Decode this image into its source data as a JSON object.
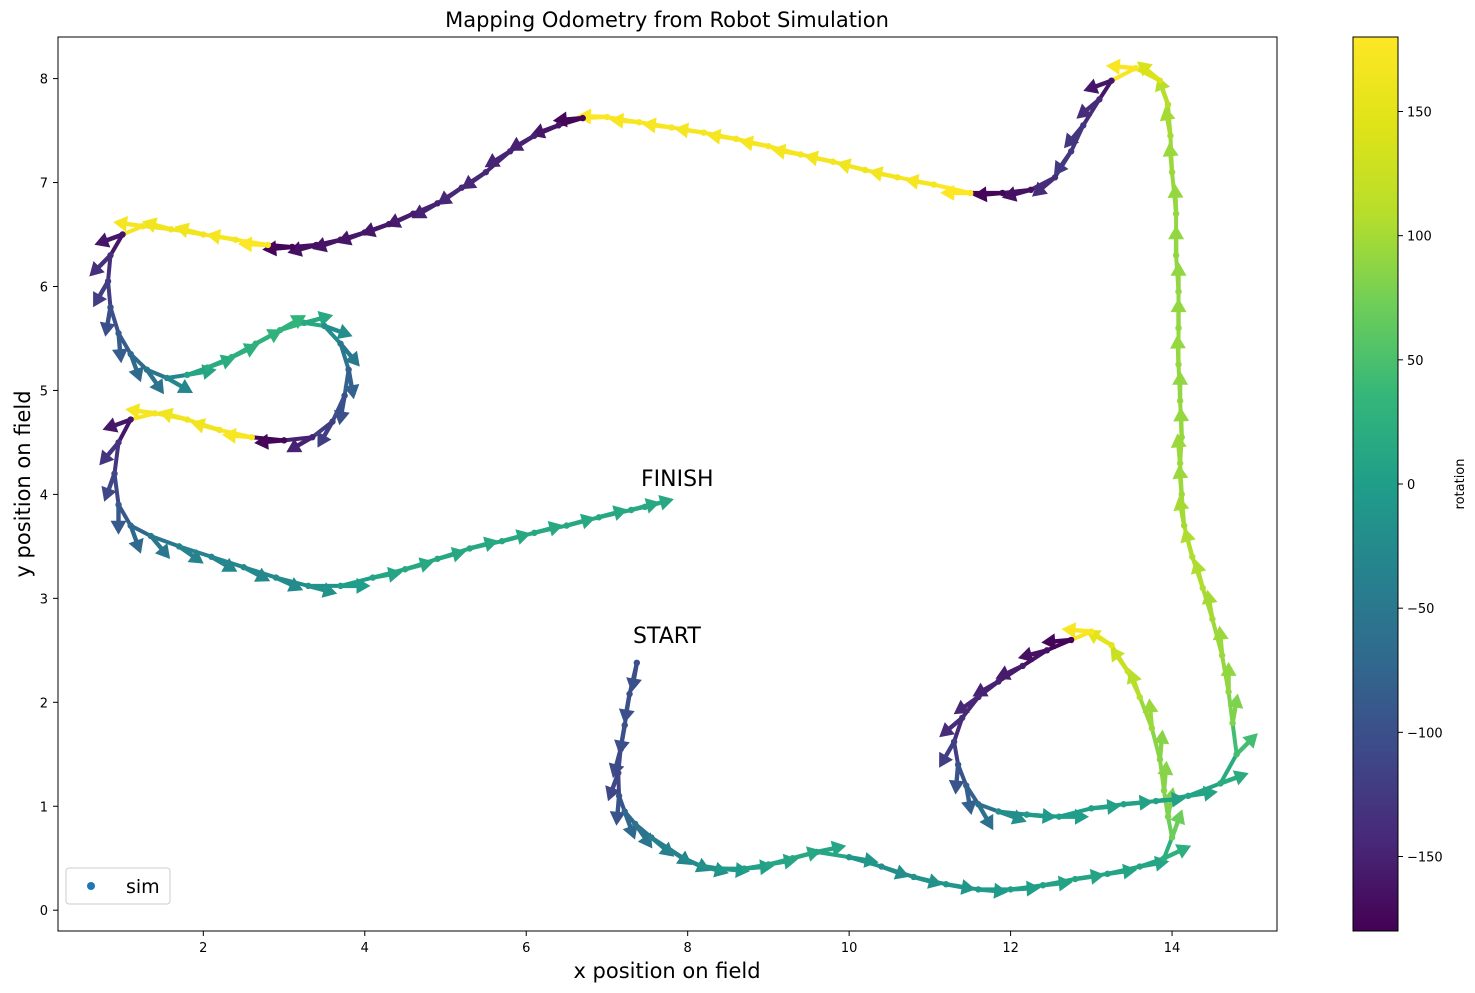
{
  "chart_data": {
    "type": "scatter",
    "title": "Mapping Odometry from Robot Simulation",
    "xlabel": "x position on field",
    "ylabel": "y position on field",
    "xlim": [
      0.2,
      15.3
    ],
    "ylim": [
      -0.2,
      8.4
    ],
    "xticks": [
      2,
      4,
      6,
      8,
      10,
      12,
      14
    ],
    "yticks": [
      0,
      1,
      2,
      3,
      4,
      5,
      6,
      7,
      8
    ],
    "grid": false,
    "legend": {
      "position": "lower-left",
      "entries": [
        {
          "label": "sim",
          "color": "#1f77b4"
        }
      ]
    },
    "colorbar": {
      "label": "rotation",
      "colormap": "viridis",
      "range": [
        -180,
        180
      ],
      "ticks": [
        150,
        100,
        50,
        0,
        -50,
        -100,
        -150
      ],
      "tick_labels": [
        "150",
        "100",
        "50",
        "0",
        "−50",
        "−100",
        "−150"
      ]
    },
    "annotations": [
      {
        "text": "FINISH",
        "x": 7.45,
        "y": 4.05
      },
      {
        "text": "START",
        "x": 7.35,
        "y": 2.55
      }
    ],
    "series": [
      {
        "name": "sim",
        "points": [
          [
            7.37,
            2.38,
            -100
          ],
          [
            7.28,
            2.08,
            -100
          ],
          [
            7.22,
            1.78,
            -100
          ],
          [
            7.17,
            1.55,
            -105
          ],
          [
            7.14,
            1.32,
            -110
          ],
          [
            7.15,
            1.1,
            -95
          ],
          [
            7.22,
            0.95,
            -70
          ],
          [
            7.35,
            0.83,
            -55
          ],
          [
            7.55,
            0.7,
            -40
          ],
          [
            7.75,
            0.6,
            -35
          ],
          [
            7.95,
            0.5,
            -25
          ],
          [
            8.15,
            0.43,
            -15
          ],
          [
            8.4,
            0.4,
            -5
          ],
          [
            8.7,
            0.4,
            5
          ],
          [
            9.0,
            0.44,
            10
          ],
          [
            9.3,
            0.5,
            15
          ],
          [
            9.6,
            0.56,
            12
          ],
          [
            10.0,
            0.51,
            -10
          ],
          [
            10.4,
            0.42,
            -20
          ],
          [
            10.8,
            0.32,
            -15
          ],
          [
            11.2,
            0.25,
            -10
          ],
          [
            11.6,
            0.2,
            -5
          ],
          [
            12.0,
            0.2,
            3
          ],
          [
            12.4,
            0.24,
            6
          ],
          [
            12.8,
            0.3,
            8
          ],
          [
            13.2,
            0.35,
            8
          ],
          [
            13.6,
            0.42,
            10
          ],
          [
            13.9,
            0.5,
            25
          ],
          [
            14.0,
            0.7,
            70
          ],
          [
            13.95,
            0.9,
            80
          ],
          [
            13.9,
            1.15,
            85
          ],
          [
            13.85,
            1.45,
            85
          ],
          [
            13.75,
            1.75,
            95
          ],
          [
            13.6,
            2.05,
            110
          ],
          [
            13.45,
            2.3,
            125
          ],
          [
            13.25,
            2.55,
            150
          ],
          [
            13.0,
            2.68,
            175
          ],
          [
            12.75,
            2.6,
            -175
          ],
          [
            12.45,
            2.5,
            -165
          ],
          [
            12.15,
            2.35,
            -155
          ],
          [
            11.85,
            2.2,
            -150
          ],
          [
            11.6,
            2.05,
            -145
          ],
          [
            11.4,
            1.85,
            -140
          ],
          [
            11.3,
            1.62,
            -120
          ],
          [
            11.35,
            1.4,
            -95
          ],
          [
            11.45,
            1.2,
            -80
          ],
          [
            11.6,
            1.02,
            -60
          ],
          [
            11.85,
            0.95,
            -20
          ],
          [
            12.2,
            0.92,
            -5
          ],
          [
            12.6,
            0.9,
            0
          ],
          [
            13.0,
            0.98,
            5
          ],
          [
            13.4,
            1.02,
            5
          ],
          [
            13.8,
            1.05,
            5
          ],
          [
            14.2,
            1.1,
            8
          ],
          [
            14.6,
            1.22,
            20
          ],
          [
            14.8,
            1.5,
            45
          ],
          [
            14.75,
            1.8,
            80
          ],
          [
            14.7,
            2.1,
            90
          ],
          [
            14.62,
            2.45,
            95
          ],
          [
            14.5,
            2.8,
            100
          ],
          [
            14.38,
            3.1,
            105
          ],
          [
            14.25,
            3.4,
            105
          ],
          [
            14.15,
            3.7,
            100
          ],
          [
            14.12,
            4.0,
            95
          ],
          [
            14.1,
            4.3,
            95
          ],
          [
            14.12,
            4.55,
            92
          ],
          [
            14.1,
            4.9,
            90
          ],
          [
            14.08,
            5.25,
            92
          ],
          [
            14.08,
            5.6,
            90
          ],
          [
            14.08,
            5.95,
            90
          ],
          [
            14.05,
            6.3,
            90
          ],
          [
            14.05,
            6.7,
            92
          ],
          [
            14.0,
            7.1,
            95
          ],
          [
            13.98,
            7.45,
            100
          ],
          [
            13.95,
            7.75,
            110
          ],
          [
            13.85,
            7.98,
            140
          ],
          [
            13.55,
            8.1,
            175
          ],
          [
            13.25,
            7.98,
            -160
          ],
          [
            13.1,
            7.8,
            -140
          ],
          [
            12.9,
            7.55,
            -130
          ],
          [
            12.75,
            7.3,
            -125
          ],
          [
            12.55,
            7.05,
            -140
          ],
          [
            12.25,
            6.93,
            -165
          ],
          [
            11.9,
            6.9,
            -175
          ],
          [
            11.5,
            6.9,
            180
          ],
          [
            11.05,
            6.98,
            170
          ],
          [
            10.6,
            7.05,
            168
          ],
          [
            10.2,
            7.12,
            166
          ],
          [
            9.8,
            7.2,
            168
          ],
          [
            9.4,
            7.27,
            170
          ],
          [
            9.0,
            7.35,
            170
          ],
          [
            8.6,
            7.42,
            172
          ],
          [
            8.2,
            7.48,
            172
          ],
          [
            7.8,
            7.53,
            173
          ],
          [
            7.4,
            7.58,
            175
          ],
          [
            7.0,
            7.63,
            178
          ],
          [
            6.7,
            7.62,
            -175
          ],
          [
            6.4,
            7.55,
            -160
          ],
          [
            6.1,
            7.45,
            -150
          ],
          [
            5.8,
            7.3,
            -148
          ],
          [
            5.5,
            7.1,
            -145
          ],
          [
            5.2,
            6.95,
            -145
          ],
          [
            4.9,
            6.8,
            -150
          ],
          [
            4.6,
            6.7,
            -155
          ],
          [
            4.3,
            6.6,
            -160
          ],
          [
            4.0,
            6.52,
            -160
          ],
          [
            3.7,
            6.45,
            -162
          ],
          [
            3.4,
            6.4,
            -165
          ],
          [
            3.1,
            6.38,
            -175
          ],
          [
            2.8,
            6.4,
            178
          ],
          [
            2.4,
            6.45,
            170
          ],
          [
            2.0,
            6.5,
            165
          ],
          [
            1.6,
            6.55,
            165
          ],
          [
            1.25,
            6.58,
            172
          ],
          [
            1.0,
            6.5,
            -160
          ],
          [
            0.85,
            6.3,
            -135
          ],
          [
            0.82,
            6.05,
            -120
          ],
          [
            0.85,
            5.8,
            -100
          ],
          [
            0.95,
            5.55,
            -85
          ],
          [
            1.1,
            5.35,
            -70
          ],
          [
            1.3,
            5.2,
            -55
          ],
          [
            1.55,
            5.12,
            -30
          ],
          [
            1.8,
            5.15,
            10
          ],
          [
            2.05,
            5.22,
            20
          ],
          [
            2.35,
            5.32,
            25
          ],
          [
            2.65,
            5.45,
            28
          ],
          [
            2.95,
            5.58,
            30
          ],
          [
            3.25,
            5.65,
            15
          ],
          [
            3.5,
            5.62,
            -20
          ],
          [
            3.7,
            5.45,
            -50
          ],
          [
            3.8,
            5.2,
            -80
          ],
          [
            3.75,
            4.95,
            -100
          ],
          [
            3.6,
            4.7,
            -120
          ],
          [
            3.35,
            4.55,
            -150
          ],
          [
            3.0,
            4.52,
            -175
          ],
          [
            2.6,
            4.55,
            175
          ],
          [
            2.2,
            4.62,
            165
          ],
          [
            1.8,
            4.72,
            165
          ],
          [
            1.4,
            4.78,
            172
          ],
          [
            1.1,
            4.72,
            -160
          ],
          [
            0.95,
            4.5,
            -130
          ],
          [
            0.9,
            4.2,
            -110
          ],
          [
            0.95,
            3.9,
            -90
          ],
          [
            1.1,
            3.7,
            -70
          ],
          [
            1.35,
            3.6,
            -50
          ],
          [
            1.7,
            3.5,
            -35
          ],
          [
            2.1,
            3.4,
            -30
          ],
          [
            2.5,
            3.3,
            -28
          ],
          [
            2.9,
            3.2,
            -25
          ],
          [
            3.3,
            3.12,
            -15
          ],
          [
            3.7,
            3.12,
            0
          ],
          [
            4.1,
            3.2,
            10
          ],
          [
            4.5,
            3.28,
            15
          ],
          [
            4.9,
            3.38,
            15
          ],
          [
            5.3,
            3.48,
            15
          ],
          [
            5.7,
            3.55,
            15
          ],
          [
            6.1,
            3.63,
            15
          ],
          [
            6.5,
            3.7,
            15
          ],
          [
            6.9,
            3.78,
            15
          ],
          [
            7.3,
            3.85,
            15
          ],
          [
            7.47,
            3.88,
            15
          ]
        ]
      }
    ]
  }
}
